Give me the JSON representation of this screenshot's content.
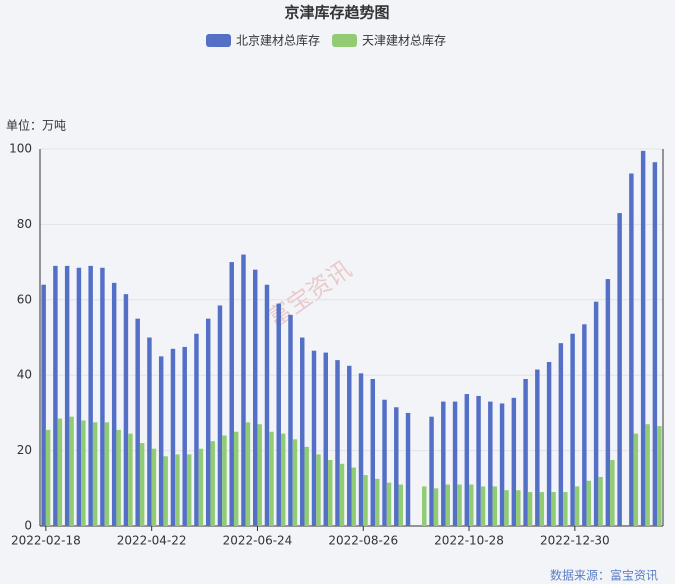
{
  "chart_data": {
    "type": "bar",
    "title": "京津库存趋势图",
    "y_axis_title": "单位：万吨",
    "source": "数据来源：富宝资讯",
    "watermark": "富宝资讯",
    "categories": [
      "2022-02-18",
      "2022-02-25",
      "2022-03-04",
      "2022-03-11",
      "2022-03-18",
      "2022-03-25",
      "2022-04-01",
      "2022-04-08",
      "2022-04-15",
      "2022-04-22",
      "2022-04-29",
      "2022-05-06",
      "2022-05-13",
      "2022-05-20",
      "2022-05-27",
      "2022-06-03",
      "2022-06-10",
      "2022-06-17",
      "2022-06-24",
      "2022-07-01",
      "2022-07-08",
      "2022-07-15",
      "2022-07-22",
      "2022-07-29",
      "2022-08-05",
      "2022-08-12",
      "2022-08-19",
      "2022-08-26",
      "2022-09-02",
      "2022-09-09",
      "2022-09-16",
      "2022-09-23",
      "2022-09-30",
      "2022-10-07",
      "2022-10-14",
      "2022-10-21",
      "2022-10-28",
      "2022-11-04",
      "2022-11-11",
      "2022-11-18",
      "2022-11-25",
      "2022-12-02",
      "2022-12-09",
      "2022-12-16",
      "2022-12-23",
      "2022-12-30",
      "2023-01-06",
      "2023-01-13",
      "2023-01-20",
      "2023-01-27",
      "2023-02-03",
      "2023-02-10",
      "2023-02-17"
    ],
    "xlabel_interval": 9,
    "series": [
      {
        "name": "北京建材总库存",
        "color": "#5470c6",
        "values": [
          64,
          69,
          69,
          68.5,
          69,
          68.5,
          64.5,
          61.5,
          55,
          50,
          45,
          47,
          47.5,
          51,
          55,
          58.5,
          70,
          72,
          68,
          64,
          59,
          56,
          50,
          46.5,
          46,
          44,
          42.5,
          40.5,
          39,
          33.5,
          31.5,
          30,
          null,
          29,
          33,
          33,
          35,
          34.5,
          33,
          32.5,
          34,
          39,
          41.5,
          43.5,
          48.5,
          51,
          53.5,
          59.5,
          65.5,
          83,
          93.5,
          99.5,
          96.5
        ]
      },
      {
        "name": "天津建材总库存",
        "color": "#91cc75",
        "values": [
          25.5,
          28.5,
          29,
          28,
          27.5,
          27.5,
          25.5,
          24.5,
          22,
          20.5,
          18.5,
          19,
          19,
          20.5,
          22.5,
          24,
          25,
          27.5,
          27,
          25,
          24.5,
          23,
          21,
          19,
          17.5,
          16.5,
          15.5,
          13.5,
          12.5,
          11.5,
          11,
          null,
          10.5,
          10,
          11,
          11,
          11,
          10.5,
          10.5,
          9.5,
          9.5,
          9,
          9,
          9,
          9,
          10.5,
          12,
          13,
          17.5,
          null,
          24.5,
          27,
          26.5
        ]
      }
    ],
    "ylim": [
      0,
      100
    ],
    "yticks": [
      0,
      20,
      40,
      60,
      80,
      100
    ],
    "grid": true
  }
}
